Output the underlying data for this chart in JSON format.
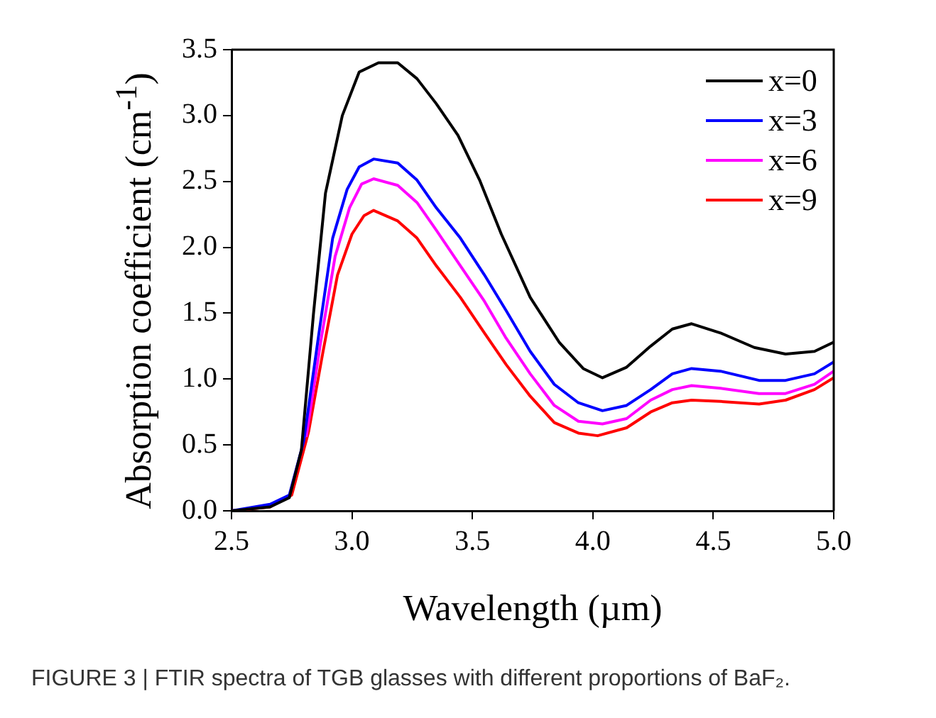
{
  "chart_data": {
    "type": "line",
    "xlabel": "Wavelength (µm)",
    "ylabel": "Absorption coefficient (cm$^{-1}$)",
    "xlim": [
      2.5,
      5.0
    ],
    "xticks": [
      {
        "value": 2.5,
        "label": "2.5"
      },
      {
        "value": 3,
        "label": "3.0"
      },
      {
        "value": 3.5,
        "label": "3.5"
      },
      {
        "value": 4,
        "label": "4.0"
      },
      {
        "value": 4.5,
        "label": "4.5"
      },
      {
        "value": 5,
        "label": "5.0"
      }
    ],
    "ylim": [
      0,
      3.5
    ],
    "yticks": [
      {
        "value": 0,
        "label": "0.0"
      },
      {
        "value": 0.5,
        "label": "0.5"
      },
      {
        "value": 1,
        "label": "1.0"
      },
      {
        "value": 1.5,
        "label": "1.5"
      },
      {
        "value": 2,
        "label": "2.0"
      },
      {
        "value": 2.5,
        "label": "2.5"
      },
      {
        "value": 3,
        "label": "3.0"
      },
      {
        "value": 3.5,
        "label": "3.5"
      }
    ],
    "grid": false,
    "legend": "top right",
    "marker": "none",
    "line_style": "solid",
    "series": [
      {
        "name": "x=0",
        "color": "#000000",
        "x": [
          2.5,
          2.66,
          2.74,
          2.79,
          2.84,
          2.89,
          2.96,
          3.03,
          3.11,
          3.19,
          3.27,
          3.35,
          3.44,
          3.53,
          3.62,
          3.74,
          3.86,
          3.96,
          4.04,
          4.14,
          4.24,
          4.33,
          4.41,
          4.53,
          4.67,
          4.8,
          4.92,
          5.0
        ],
        "values": [
          0,
          0.03,
          0.1,
          0.46,
          1.49,
          2.41,
          3.0,
          3.33,
          3.4,
          3.4,
          3.28,
          3.09,
          2.85,
          2.51,
          2.1,
          1.62,
          1.28,
          1.08,
          1.01,
          1.09,
          1.25,
          1.38,
          1.42,
          1.35,
          1.24,
          1.19,
          1.21,
          1.28
        ]
      },
      {
        "name": "x=3",
        "color": "#0000ff",
        "x": [
          2.5,
          2.66,
          2.74,
          2.8,
          2.86,
          2.92,
          2.98,
          3.03,
          3.09,
          3.19,
          3.27,
          3.35,
          3.45,
          3.55,
          3.64,
          3.74,
          3.84,
          3.94,
          4.04,
          4.14,
          4.24,
          4.33,
          4.41,
          4.53,
          4.69,
          4.8,
          4.92,
          5.0
        ],
        "values": [
          0,
          0.05,
          0.12,
          0.53,
          1.31,
          2.07,
          2.44,
          2.61,
          2.67,
          2.64,
          2.51,
          2.3,
          2.07,
          1.79,
          1.52,
          1.21,
          0.96,
          0.82,
          0.76,
          0.8,
          0.92,
          1.04,
          1.08,
          1.06,
          0.99,
          0.99,
          1.04,
          1.13
        ]
      },
      {
        "name": "x=6",
        "color": "#ff00ff",
        "x": [
          2.81,
          2.87,
          2.93,
          2.99,
          3.04,
          3.09,
          3.19,
          3.27,
          3.35,
          3.45,
          3.55,
          3.64,
          3.74,
          3.84,
          3.94,
          4.04,
          4.14,
          4.24,
          4.33,
          4.41,
          4.53,
          4.69,
          4.8,
          4.92,
          5.0
        ],
        "values": [
          0.56,
          1.28,
          1.93,
          2.3,
          2.48,
          2.52,
          2.47,
          2.34,
          2.13,
          1.86,
          1.59,
          1.31,
          1.04,
          0.8,
          0.68,
          0.66,
          0.7,
          0.84,
          0.92,
          0.95,
          0.93,
          0.89,
          0.89,
          0.96,
          1.06
        ]
      },
      {
        "name": "x=9",
        "color": "#ff0000",
        "x": [
          2.5,
          2.66,
          2.75,
          2.82,
          2.88,
          2.94,
          3.0,
          3.05,
          3.09,
          3.19,
          3.27,
          3.35,
          3.45,
          3.55,
          3.64,
          3.74,
          3.84,
          3.94,
          4.02,
          4.14,
          4.24,
          4.33,
          4.41,
          4.53,
          4.69,
          4.8,
          4.92,
          5.0
        ],
        "values": [
          0,
          0.03,
          0.12,
          0.6,
          1.21,
          1.79,
          2.1,
          2.24,
          2.28,
          2.2,
          2.07,
          1.86,
          1.62,
          1.35,
          1.11,
          0.87,
          0.67,
          0.59,
          0.57,
          0.63,
          0.75,
          0.82,
          0.84,
          0.83,
          0.81,
          0.84,
          0.92,
          1.01
        ]
      }
    ],
    "annotations": [
      "FIGURE 3 | FTIR spectra of TGB glasses with different proportions of BaF₂."
    ]
  }
}
